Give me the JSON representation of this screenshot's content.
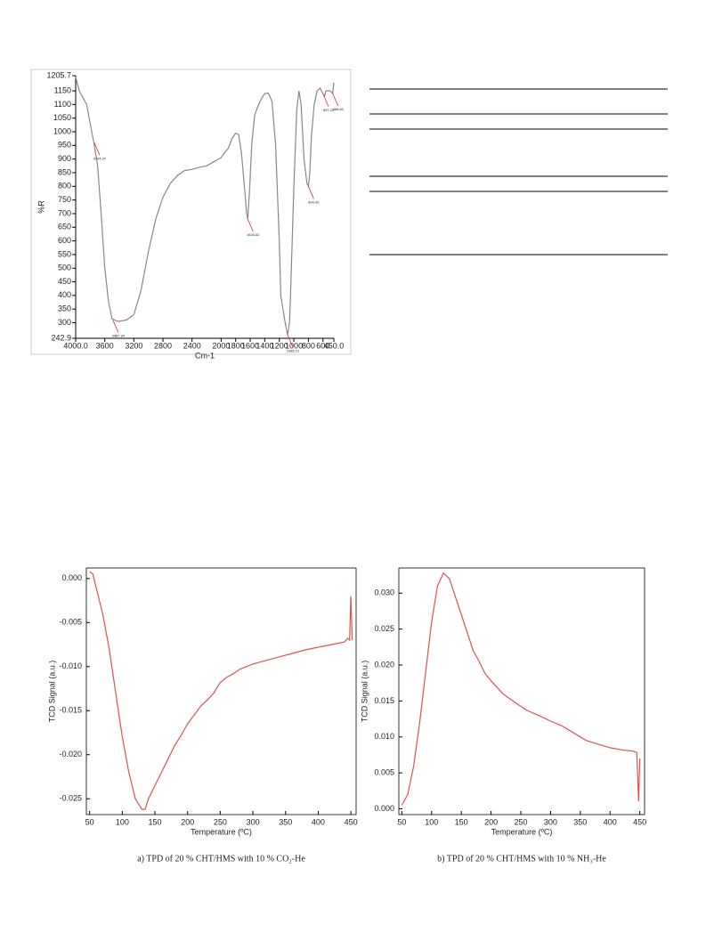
{
  "chart_data": [
    {
      "type": "line",
      "xlabel": "Cm-1",
      "ylabel": "%R",
      "color": "#888888",
      "xlim": [
        4000,
        450
      ],
      "ylim": [
        242.9,
        1205.7
      ],
      "xticks": [
        {
          "value": 4000,
          "label": "4000.0"
        },
        3600,
        3200,
        2800,
        2400,
        2000,
        1800,
        1600,
        1400,
        1200,
        1000,
        800,
        600,
        {
          "value": 450,
          "label": "450.0"
        }
      ],
      "yticks": [
        242.9,
        300,
        350,
        400,
        450,
        500,
        550,
        600,
        650,
        700,
        750,
        800,
        850,
        900,
        950,
        1000,
        1050,
        1100,
        1150,
        1205.7
      ],
      "x": [
        4000,
        3950,
        3850,
        3750,
        3700,
        3650,
        3600,
        3550,
        3500,
        3450,
        3400,
        3300,
        3200,
        3100,
        3000,
        2900,
        2800,
        2700,
        2600,
        2500,
        2400,
        2300,
        2200,
        2100,
        2000,
        1950,
        1900,
        1850,
        1800,
        1760,
        1720,
        1680,
        1650,
        1634,
        1610,
        1580,
        1540,
        1500,
        1450,
        1400,
        1350,
        1300,
        1250,
        1200,
        1180,
        1150,
        1120,
        1086,
        1060,
        1040,
        1000,
        960,
        930,
        900,
        860,
        820,
        800,
        780,
        760,
        720,
        680,
        640,
        600,
        580,
        560,
        500,
        466,
        450
      ],
      "values": [
        1200,
        1150,
        1100,
        960,
        880,
        700,
        500,
        380,
        315,
        308,
        305,
        310,
        330,
        420,
        560,
        680,
        760,
        810,
        840,
        858,
        862,
        870,
        875,
        890,
        905,
        925,
        940,
        975,
        995,
        990,
        920,
        800,
        700,
        680,
        780,
        950,
        1060,
        1090,
        1120,
        1140,
        1142,
        1110,
        950,
        600,
        400,
        350,
        300,
        255,
        300,
        450,
        800,
        1080,
        1150,
        1100,
        900,
        810,
        800,
        850,
        980,
        1100,
        1150,
        1160,
        1140,
        1130,
        1150,
        1150,
        1140,
        1180
      ],
      "annotations": [
        {
          "text": "3744.37",
          "x": 3744,
          "y": 960
        },
        {
          "text": "3487.94",
          "x": 3488,
          "y": 310
        },
        {
          "text": "1634.62",
          "x": 1634,
          "y": 680
        },
        {
          "text": "1086.21",
          "x": 1086,
          "y": 255
        },
        {
          "text": "800.42",
          "x": 800,
          "y": 800
        },
        {
          "text": "597.22",
          "x": 597,
          "y": 1138
        },
        {
          "text": "466.60",
          "x": 466,
          "y": 1140
        }
      ]
    },
    {
      "type": "line",
      "xlabel": "Temperature (ºC)",
      "ylabel": "TCD Signal (a.u.)",
      "color": "#e05050",
      "caption": "a) TPD of 20 % CHT/HMS with 10 % CO₂-He",
      "xlim": [
        45,
        458
      ],
      "ylim": [
        -0.0268,
        0.0012
      ],
      "xticks": [
        50,
        100,
        150,
        200,
        250,
        300,
        350,
        400,
        450
      ],
      "yticks": [
        {
          "value": 0,
          "label": "0.000"
        },
        -0.005,
        {
          "value": -0.01,
          "label": "-0.010"
        },
        -0.015,
        {
          "value": -0.02,
          "label": "-0.020"
        },
        -0.025
      ],
      "x": [
        50,
        55,
        60,
        70,
        80,
        90,
        100,
        110,
        120,
        130,
        135,
        140,
        150,
        160,
        170,
        180,
        190,
        200,
        210,
        220,
        230,
        240,
        250,
        260,
        270,
        280,
        290,
        300,
        320,
        340,
        360,
        380,
        400,
        420,
        440,
        445,
        448,
        450,
        452
      ],
      "values": [
        0.0008,
        0.0005,
        -0.001,
        -0.004,
        -0.008,
        -0.013,
        -0.018,
        -0.022,
        -0.025,
        -0.0262,
        -0.0262,
        -0.025,
        -0.0235,
        -0.022,
        -0.0205,
        -0.019,
        -0.0178,
        -0.0165,
        -0.0155,
        -0.0145,
        -0.0138,
        -0.013,
        -0.0118,
        -0.0112,
        -0.0108,
        -0.0103,
        -0.01,
        -0.0097,
        -0.0093,
        -0.0089,
        -0.0085,
        -0.0081,
        -0.0078,
        -0.0075,
        -0.0072,
        -0.0068,
        -0.007,
        -0.002,
        -0.007
      ]
    },
    {
      "type": "line",
      "xlabel": "Temperature (ºC)",
      "ylabel": "TCD Signal (a.u.)",
      "color": "#e05050",
      "caption": "b) TPD of 20 % CHT/HMS with 10 % NH₃-He",
      "xlim": [
        45,
        458
      ],
      "ylim": [
        -0.0008,
        0.0335
      ],
      "xticks": [
        50,
        100,
        150,
        200,
        250,
        300,
        350,
        400,
        450
      ],
      "yticks": [
        {
          "value": 0,
          "label": "0.000"
        },
        0.005,
        {
          "value": 0.01,
          "label": "0.010"
        },
        0.015,
        {
          "value": 0.02,
          "label": "0.020"
        },
        0.025,
        {
          "value": 0.03,
          "label": "0.030"
        }
      ],
      "x": [
        50,
        60,
        70,
        80,
        90,
        100,
        110,
        120,
        130,
        140,
        150,
        160,
        170,
        180,
        190,
        200,
        220,
        240,
        260,
        280,
        300,
        320,
        340,
        360,
        380,
        400,
        420,
        440,
        445,
        448,
        450
      ],
      "values": [
        0.0005,
        0.002,
        0.006,
        0.012,
        0.019,
        0.026,
        0.031,
        0.0328,
        0.032,
        0.0295,
        0.027,
        0.0245,
        0.022,
        0.0205,
        0.0188,
        0.0178,
        0.016,
        0.0148,
        0.0137,
        0.013,
        0.0122,
        0.0115,
        0.0105,
        0.0095,
        0.009,
        0.0085,
        0.0082,
        0.008,
        0.0078,
        0.001,
        0.007
      ]
    }
  ]
}
